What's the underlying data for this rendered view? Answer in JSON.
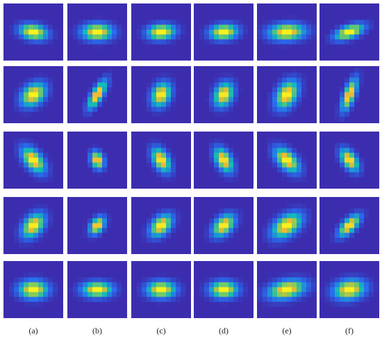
{
  "figure": {
    "panel_labels": [
      "(a)",
      "(b)",
      "(c)",
      "(d)",
      "(e)",
      "(f)"
    ]
  }
}
